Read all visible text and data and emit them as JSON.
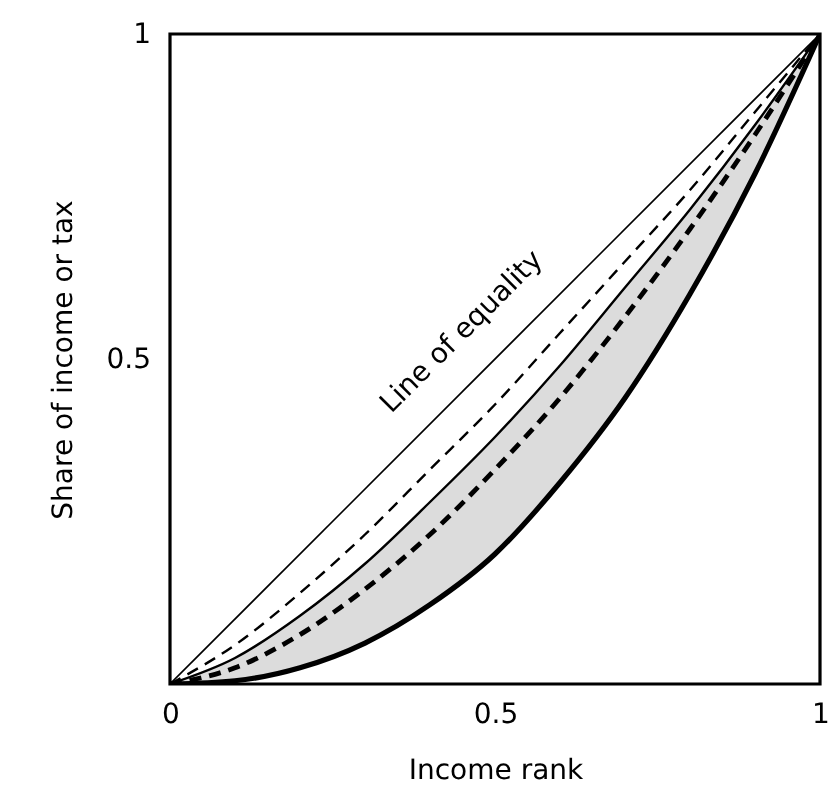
{
  "chart_data": {
    "type": "line",
    "xlabel": "Income rank",
    "ylabel": "Share of income or tax",
    "x": [
      0,
      0.1,
      0.2,
      0.3,
      0.4,
      0.5,
      0.6,
      0.7,
      0.8,
      0.9,
      1
    ],
    "xlim": [
      0,
      1
    ],
    "ylim": [
      0,
      1
    ],
    "xticks": [
      0,
      0.5,
      1
    ],
    "yticks": [
      0.5,
      1
    ],
    "grid": false,
    "annotations": [
      "Line of equality"
    ],
    "series": [
      {
        "color": "#000000",
        "line_style": "solid",
        "x": [
          0,
          1
        ],
        "values": [
          0,
          1
        ]
      },
      {
        "color": "#000000",
        "line_style": "dashed",
        "values": [
          0,
          0.06,
          0.14,
          0.23,
          0.33,
          0.43,
          0.54,
          0.65,
          0.76,
          0.88,
          1
        ]
      },
      {
        "color": "#000000",
        "line_style": "solid",
        "values": [
          0,
          0.04,
          0.105,
          0.185,
          0.28,
          0.38,
          0.49,
          0.61,
          0.73,
          0.86,
          1
        ],
        "lower": [
          0,
          0.005,
          0.025,
          0.063,
          0.122,
          0.2,
          0.31,
          0.44,
          0.6,
          0.785,
          1
        ],
        "upper": [
          0,
          0.04,
          0.105,
          0.185,
          0.28,
          0.38,
          0.49,
          0.61,
          0.73,
          0.86,
          1
        ]
      },
      {
        "color": "#000000",
        "line_style": "dashed",
        "values": [
          0,
          0.025,
          0.076,
          0.146,
          0.23,
          0.33,
          0.44,
          0.565,
          0.7,
          0.845,
          1
        ]
      },
      {
        "color": "#000000",
        "line_style": "solid",
        "values": [
          0,
          0.005,
          0.025,
          0.063,
          0.122,
          0.2,
          0.31,
          0.44,
          0.6,
          0.785,
          1
        ]
      }
    ]
  }
}
